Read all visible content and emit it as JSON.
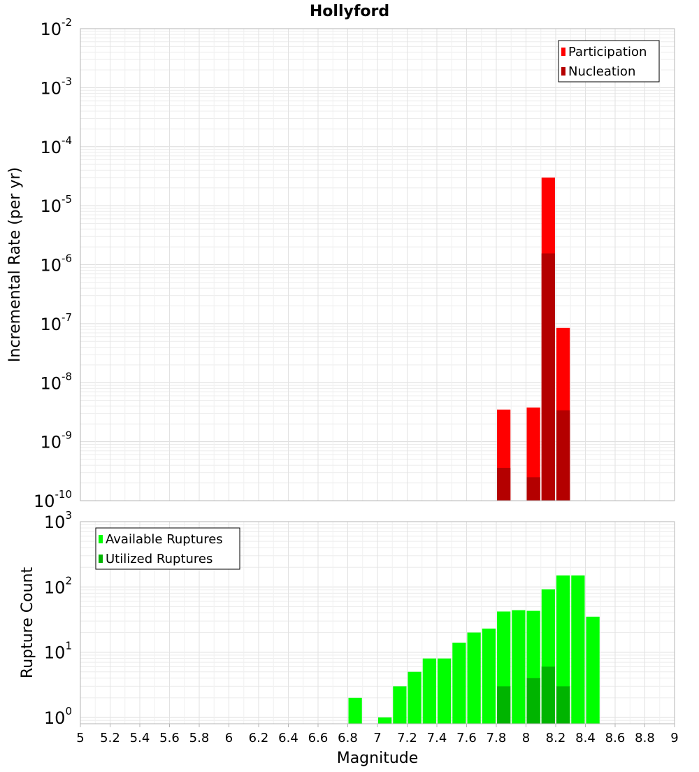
{
  "title": "Hollyford",
  "xlabel": "Magnitude",
  "x_ticks": [
    5,
    5.2,
    5.4,
    5.6,
    5.8,
    6,
    6.2,
    6.4,
    6.6,
    6.8,
    7,
    7.2,
    7.4,
    7.6,
    7.8,
    8,
    8.2,
    8.4,
    8.6,
    8.8,
    9
  ],
  "chart_data": [
    {
      "type": "bar",
      "ylabel": "Incremental Rate (per yr)",
      "yscale": "log",
      "ylim": [
        1e-10,
        0.01
      ],
      "xlim": [
        5,
        9
      ],
      "y_tick_exponents": [
        -10,
        -9,
        -8,
        -7,
        -6,
        -5,
        -4,
        -3,
        -2
      ],
      "legend_position": "top-right",
      "series": [
        {
          "name": "Participation",
          "color": "#ff0000",
          "x": [
            7.85,
            8.05,
            8.15,
            8.25
          ],
          "values": [
            3.5e-09,
            3.8e-09,
            3e-05,
            8.5e-08
          ]
        },
        {
          "name": "Nucleation",
          "color": "#b40000",
          "x": [
            7.85,
            8.05,
            8.15,
            8.25
          ],
          "values": [
            3.6e-10,
            2.5e-10,
            1.55e-06,
            3.4e-09
          ]
        }
      ]
    },
    {
      "type": "bar",
      "ylabel": "Rupture Count",
      "yscale": "log",
      "ylim": [
        0.8,
        1000
      ],
      "xlim": [
        5,
        9
      ],
      "y_tick_exponents": [
        0,
        1,
        2,
        3
      ],
      "legend_position": "top-left",
      "series": [
        {
          "name": "Available Ruptures",
          "color": "#00ff00",
          "x": [
            6.85,
            7.05,
            7.15,
            7.25,
            7.35,
            7.45,
            7.55,
            7.65,
            7.75,
            7.85,
            7.95,
            8.05,
            8.15,
            8.25,
            8.35,
            8.45
          ],
          "values": [
            2,
            1,
            3,
            5,
            8,
            8,
            14,
            20,
            23,
            42,
            44,
            43,
            92,
            150,
            150,
            35
          ]
        },
        {
          "name": "Utilized Ruptures",
          "color": "#00b400",
          "x": [
            7.85,
            8.05,
            8.15,
            8.25
          ],
          "values": [
            3,
            4,
            6,
            3
          ]
        }
      ]
    }
  ]
}
